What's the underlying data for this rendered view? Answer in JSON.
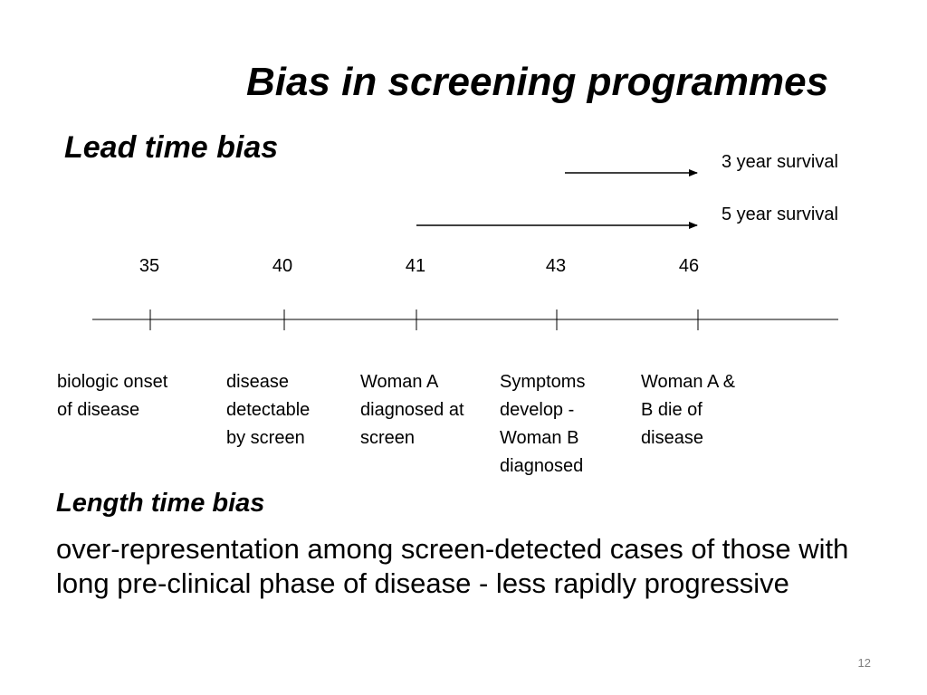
{
  "title": "Bias in screening programmes",
  "lead_time": {
    "heading": "Lead time bias",
    "arrows": [
      {
        "label": "3 year survival"
      },
      {
        "label": "5 year survival"
      }
    ],
    "ages": [
      "35",
      "40",
      "41",
      "43",
      "46"
    ],
    "events": [
      "biologic onset\nof disease",
      "disease\ndetectable\nby screen",
      "Woman A\ndiagnosed at\nscreen",
      "Symptoms\ndevelop -\nWoman B\ndiagnosed",
      "Woman A &\nB die of\ndisease"
    ]
  },
  "length_time": {
    "heading": "Length time bias",
    "description": "over-representation among screen-detected cases of those with long pre-clinical phase of disease - less rapidly progressive"
  },
  "slide_number": "12",
  "colors": {
    "text": "#000000",
    "line": "#000000",
    "slide_number": "#808080"
  }
}
